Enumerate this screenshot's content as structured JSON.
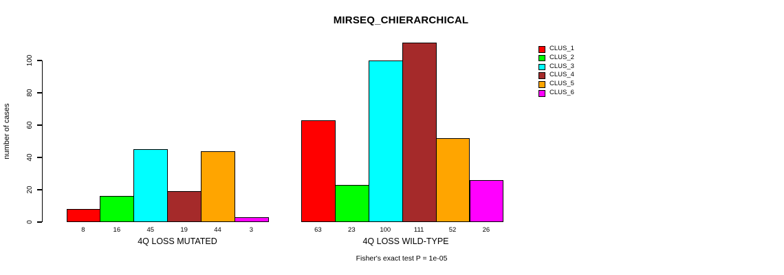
{
  "title": "MIRSEQ_CHIERARCHICAL",
  "footnote": "Fisher's exact test P = 1e-05",
  "chart_data": {
    "type": "bar",
    "title": "MIRSEQ_CHIERARCHICAL",
    "xlabel": "",
    "ylabel": "number of cases",
    "ylim": [
      0,
      111
    ],
    "yticks": [
      0,
      20,
      40,
      60,
      80,
      100
    ],
    "grid": false,
    "legend_position": "right-outside",
    "bar_value_labels_shown": true,
    "categories": [
      "4Q LOSS MUTATED",
      "4Q LOSS WILD-TYPE"
    ],
    "series": [
      {
        "name": "CLUS_1",
        "color": "#FF0000",
        "values": [
          8,
          63
        ]
      },
      {
        "name": "CLUS_2",
        "color": "#00FF00",
        "values": [
          16,
          23
        ]
      },
      {
        "name": "CLUS_3",
        "color": "#00FFFF",
        "values": [
          45,
          100
        ]
      },
      {
        "name": "CLUS_4",
        "color": "#A52A2A",
        "values": [
          19,
          111
        ]
      },
      {
        "name": "CLUS_5",
        "color": "#FFA500",
        "values": [
          44,
          52
        ]
      },
      {
        "name": "CLUS_6",
        "color": "#FF00FF",
        "values": [
          3,
          26
        ]
      }
    ],
    "annotation": "Fisher's exact test P = 1e-05"
  }
}
